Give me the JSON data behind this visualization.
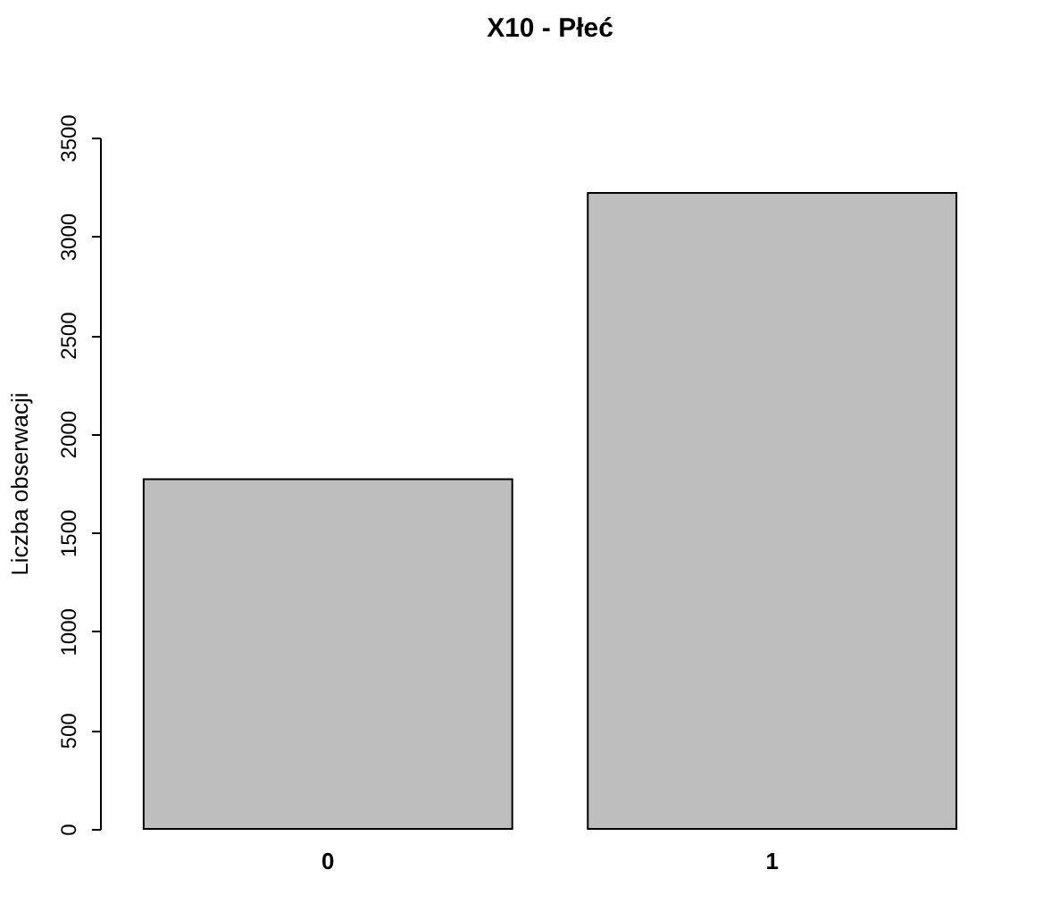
{
  "chart_data": {
    "type": "bar",
    "title": "X10 - Płeć",
    "ylabel": "Liczba obserwacji",
    "categories": [
      "0",
      "1"
    ],
    "values": [
      1770,
      3220
    ],
    "color": "#bebebe",
    "ylim": [
      0,
      3500
    ],
    "yticks": [
      0,
      500,
      1000,
      1500,
      2000,
      2500,
      3000,
      3500
    ],
    "grid": false
  }
}
